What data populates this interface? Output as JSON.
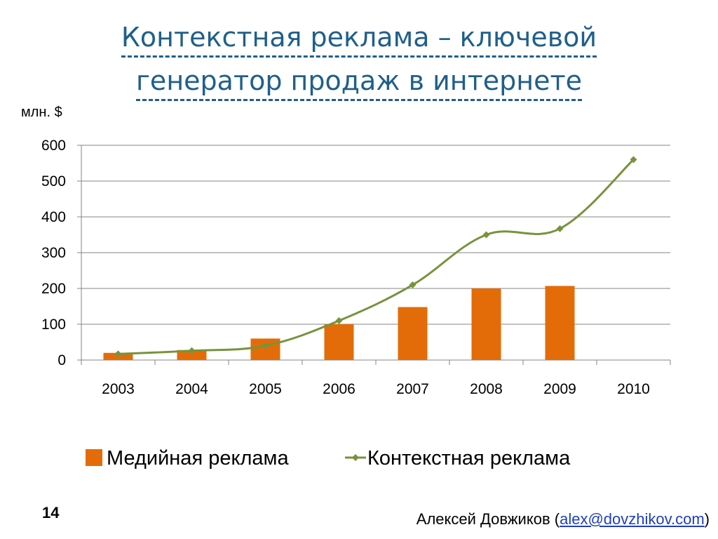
{
  "slide": {
    "title_line1": "Контекстная реклама – ключевой",
    "title_line2": "генератор продаж в интернете",
    "number": "14",
    "author": "Алексей Довжиков",
    "author_open": " (",
    "author_email": "alex@dovzhikov.com",
    "author_close": ")"
  },
  "colors": {
    "title": "#1f5f8b",
    "bar": "#e36c09",
    "line": "#77933c"
  },
  "chart_data": {
    "type": "bar+line",
    "ylabel": "млн. $",
    "ylim": [
      0,
      600
    ],
    "yticks": [
      0,
      100,
      200,
      300,
      400,
      500,
      600
    ],
    "grid": true,
    "legend_position": "bottom",
    "categories": [
      "2003",
      "2004",
      "2005",
      "2006",
      "2007",
      "2008",
      "2009",
      "2010"
    ],
    "series": [
      {
        "name": "Медийная реклама",
        "type": "bar",
        "values": [
          20,
          28,
          60,
          100,
          148,
          200,
          207,
          null
        ]
      },
      {
        "name": "Контекстная реклама",
        "type": "line",
        "values": [
          17,
          26,
          40,
          110,
          210,
          350,
          367,
          560
        ]
      }
    ]
  }
}
